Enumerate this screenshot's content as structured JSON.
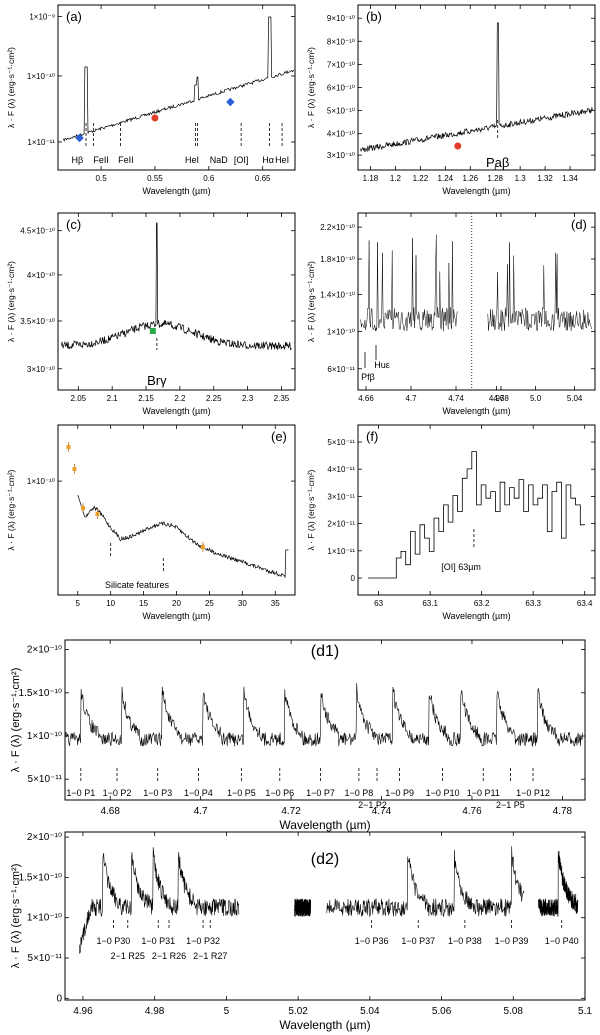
{
  "figure": {
    "panels": [
      {
        "id": "a",
        "panel_label": "(a)",
        "xlabel": "Wavelength (µm)",
        "ylabel": "λ · F (λ) (erg·s⁻¹·cm²)",
        "xticks": [
          "0.5",
          "0.55",
          "0.6",
          "0.65"
        ],
        "yticks": [
          "1×10⁻¹¹",
          "1×10⁻¹⁰",
          "1×10⁻⁹"
        ],
        "lines": [
          "Hβ",
          "FeII",
          "FeII",
          "HeI",
          "NaD",
          "[OI]",
          "Hα",
          "HeI"
        ]
      },
      {
        "id": "b",
        "panel_label": "(b)",
        "xlabel": "Wavelength (µm)",
        "ylabel": "λ · F (λ) (erg·s⁻¹·cm²)",
        "xticks": [
          "1.18",
          "1.2",
          "1.22",
          "1.24",
          "1.26",
          "1.28",
          "1.3",
          "1.32",
          "1.34"
        ],
        "yticks": [
          "3×10⁻¹⁰",
          "4×10⁻¹⁰",
          "5×10⁻¹⁰",
          "6×10⁻¹⁰",
          "7×10⁻¹⁰",
          "8×10⁻¹⁰",
          "9×10⁻¹⁰"
        ],
        "lines": [
          "Paβ"
        ]
      },
      {
        "id": "c",
        "panel_label": "(c)",
        "xlabel": "Wavelength (µm)",
        "ylabel": "λ · F (λ) (erg·s⁻¹·cm²)",
        "xticks": [
          "2.05",
          "2.1",
          "2.15",
          "2.2",
          "2.25",
          "2.3",
          "2.35"
        ],
        "yticks": [
          "3×10⁻¹⁰",
          "3.5×10⁻¹⁰",
          "4×10⁻¹⁰",
          "4.5×10⁻¹⁰"
        ],
        "lines": [
          "Brγ"
        ]
      },
      {
        "id": "d",
        "panel_label": "(d)",
        "xlabel": "Wavelength (µm)",
        "ylabel": "λ · F (λ) (erg·s⁻¹·cm²)",
        "xticks": [
          "4.66",
          "4.7",
          "4.74",
          "4.78",
          "4.96",
          "5.0",
          "5.04",
          "5.08"
        ],
        "yticks": [
          "6×10⁻¹¹",
          "1×10⁻¹⁰",
          "1.4×10⁻¹⁰",
          "1.8×10⁻¹⁰",
          "2.2×10⁻¹⁰"
        ],
        "lines": [
          "Pfβ",
          "Huε"
        ]
      },
      {
        "id": "e",
        "panel_label": "(e)",
        "xlabel": "Wavelength (µm)",
        "ylabel": "λ · F (λ) (erg·s⁻¹·cm²)",
        "xticks": [
          "5",
          "10",
          "15",
          "20",
          "25",
          "30",
          "35"
        ],
        "yticks": [
          "1×10⁻¹⁰"
        ],
        "annotation": "Silicate features"
      },
      {
        "id": "f",
        "panel_label": "(f)",
        "xlabel": "Wavelength (µm)",
        "ylabel": "λ · F (λ) (erg·s⁻¹·cm²)",
        "xticks": [
          "63",
          "63.1",
          "63.2",
          "63.3",
          "63.4"
        ],
        "yticks": [
          "0",
          "1×10⁻¹¹",
          "2×10⁻¹¹",
          "3×10⁻¹¹",
          "4×10⁻¹¹",
          "5×10⁻¹¹"
        ],
        "lines": [
          "[OI] 63µm"
        ]
      },
      {
        "id": "d1",
        "panel_label": "(d1)",
        "xlabel": "Wavelength (µm)",
        "ylabel": "λ · F (λ) (erg·s⁻¹·cm²)",
        "xticks": [
          "4.68",
          "4.7",
          "4.72",
          "4.74",
          "4.76",
          "4.78"
        ],
        "yticks": [
          "5×10⁻¹¹",
          "1×10⁻¹⁰",
          "1.5×10⁻¹⁰",
          "2×10⁻¹⁰"
        ],
        "lines": [
          "1−0 P1",
          "1−0 P2",
          "1−0 P3",
          "1−0 P4",
          "1−0 P5",
          "1−0 P6",
          "1−0 P7",
          "1−0 P8",
          "2−1 P2",
          "1−0 P9",
          "1−0 P10",
          "1−0 P11",
          "2−1 P5",
          "1−0 P12"
        ]
      },
      {
        "id": "d2",
        "panel_label": "(d2)",
        "xlabel": "Wavelength (µm)",
        "ylabel": "λ · F (λ) (erg·s⁻¹·cm²)",
        "xticks": [
          "4.96",
          "4.98",
          "5",
          "5.02",
          "5.04",
          "5.06",
          "5.08",
          "5.1"
        ],
        "yticks": [
          "0",
          "5×10⁻¹¹",
          "1×10⁻¹⁰",
          "1.5×10⁻¹⁰",
          "2×10⁻¹⁰"
        ],
        "lines": [
          "1−0 P30",
          "2−1 R25",
          "1−0 P31",
          "2−1 R26",
          "1−0 P32",
          "2−1 R27",
          "1−0 P36",
          "1−0 P37",
          "1−0 P38",
          "1−0 P39",
          "1−0 P40"
        ]
      }
    ]
  },
  "chart_data": [
    {
      "type": "line",
      "panel": "(a)",
      "xlabel": "Wavelength (µm)",
      "ylabel": "λ · F (λ) (erg·s⁻¹·cm²)",
      "xlim": [
        0.46,
        0.68
      ],
      "ylim": [
        1e-11,
        2e-09
      ],
      "yscale": "log",
      "series": [
        {
          "x": [
            0.47,
            0.5,
            0.55,
            0.6,
            0.64,
            0.655,
            0.656,
            0.66,
            0.68
          ],
          "y": [
            1.3e-11,
            2.2e-11,
            3.5e-11,
            6e-11,
            8e-11,
            9e-11,
            9e-10,
            1e-10,
            1.1e-10
          ]
        }
      ],
      "photometry": [
        {
          "x": 0.48,
          "y": 1.5e-11,
          "color": "#2b5fd9"
        },
        {
          "x": 0.55,
          "y": 3.6e-11,
          "color": "#e0402a"
        },
        {
          "x": 0.62,
          "y": 6.4e-11,
          "color": "#2b5fd9"
        }
      ],
      "line_ids": [
        "Hβ",
        "FeII",
        "FeII",
        "HeI",
        "NaD",
        "[OI]",
        "Hα",
        "HeI"
      ]
    },
    {
      "type": "line",
      "panel": "(b)",
      "xlabel": "Wavelength (µm)",
      "ylabel": "λ · F (λ) (erg·s⁻¹·cm²)",
      "xlim": [
        1.17,
        1.36
      ],
      "ylim": [
        2.7e-10,
        9.2e-10
      ],
      "series": [
        {
          "x": [
            1.17,
            1.2,
            1.24,
            1.28,
            1.282,
            1.3,
            1.35
          ],
          "y": [
            2.9e-10,
            3e-10,
            3.2e-10,
            3.6e-10,
            8.9e-10,
            3.8e-10,
            4.1e-10
          ]
        }
      ],
      "photometry": [
        {
          "x": 1.25,
          "y": 3.3e-10,
          "color": "#e0402a"
        }
      ],
      "line_ids": [
        "Paβ"
      ]
    },
    {
      "type": "line",
      "panel": "(c)",
      "xlabel": "Wavelength (µm)",
      "ylabel": "λ · F (λ) (erg·s⁻¹·cm²)",
      "xlim": [
        2.02,
        2.37
      ],
      "ylim": [
        2.9e-10,
        4.9e-10
      ],
      "series": [
        {
          "x": [
            2.02,
            2.1,
            2.16,
            2.166,
            2.2,
            2.3,
            2.36
          ],
          "y": [
            3.1e-10,
            3.2e-10,
            3.4e-10,
            4.8e-10,
            3.35e-10,
            3.2e-10,
            3.05e-10
          ]
        }
      ],
      "photometry": [
        {
          "x": 2.16,
          "y": 3.4e-10,
          "color": "#2aa84a"
        }
      ],
      "line_ids": [
        "Brγ"
      ]
    },
    {
      "type": "line",
      "panel": "(d)",
      "xlabel": "Wavelength (µm)",
      "ylabel": "λ · F (λ) (erg·s⁻¹·cm²)",
      "ylim": [
        4e-11,
        2.4e-10
      ],
      "series": [
        {
          "name": "",
          "x": [
            4.65,
            4.7,
            4.75,
            4.78,
            4.95,
            5.0,
            5.05,
            5.09
          ],
          "y": [
            1.1e-10,
            1.2e-10,
            1.15e-10,
            1.1e-10,
            1.1e-10,
            1.1e-10,
            1.1e-10,
            1.1e-10
          ]
        }
      ],
      "line_ids": [
        "Pfβ",
        "Huε"
      ]
    },
    {
      "type": "line",
      "panel": "(e)",
      "xlabel": "Wavelength (µm)",
      "ylabel": "λ · F (λ) (erg·s⁻¹·cm²)",
      "xlim": [
        2,
        38
      ],
      "yscale": "log",
      "series": [
        {
          "x": [
            5,
            7,
            9,
            10,
            11,
            14,
            18,
            20,
            25,
            30,
            35
          ],
          "y": [
            1e-10,
            5e-11,
            6.5e-11,
            4.5e-11,
            3.5e-11,
            3.7e-11,
            4.4e-11,
            3.9e-11,
            3e-11,
            2.2e-11,
            1.7e-11
          ]
        }
      ],
      "photometry": [
        {
          "x": 3.6,
          "y": 2.2e-10
        },
        {
          "x": 4.5,
          "y": 1.6e-10
        },
        {
          "x": 5.8,
          "y": 8e-11
        },
        {
          "x": 8,
          "y": 7.2e-11
        },
        {
          "x": 24,
          "y": 3.4e-11
        }
      ],
      "annotation": "Silicate features"
    },
    {
      "type": "line",
      "panel": "(f)",
      "xlabel": "Wavelength (µm)",
      "ylabel": "λ · F (λ) (erg·s⁻¹·cm²)",
      "xlim": [
        62.96,
        63.42
      ],
      "ylim": [
        0,
        5.5e-11
      ],
      "series": [
        {
          "x": [
            62.98,
            63.03,
            63.08,
            63.12,
            63.16,
            63.18,
            63.2,
            63.25,
            63.3,
            63.35,
            63.4
          ],
          "y": [
            0,
            1e-11,
            2e-11,
            1.5e-11,
            5e-11,
            5.5e-11,
            4e-11,
            3.8e-11,
            3.5e-11,
            3.2e-11,
            6e-12
          ]
        }
      ],
      "line_ids": [
        "[OI] 63µm"
      ]
    },
    {
      "type": "line",
      "panel": "(d1)",
      "xlabel": "Wavelength (µm)",
      "ylabel": "λ · F (λ) (erg·s⁻¹·cm²)",
      "xlim": [
        4.67,
        4.785
      ],
      "ylim": [
        3.5e-11,
        2.4e-10
      ],
      "series": [
        {
          "x": [
            4.67,
            4.684,
            4.692,
            4.7,
            4.709,
            4.718,
            4.726,
            4.734,
            4.742,
            4.75,
            4.76,
            4.772
          ],
          "y": [
            1.1e-10,
            1.8e-10,
            1.75e-10,
            2e-10,
            1.65e-10,
            1.8e-10,
            2.2e-10,
            1.9e-10,
            2e-10,
            1.95e-10,
            1.9e-10,
            2e-10
          ]
        }
      ],
      "line_ids": [
        "1−0 P1",
        "1−0 P2",
        "1−0 P3",
        "1−0 P4",
        "1−0 P5",
        "1−0 P6",
        "1−0 P7",
        "1−0 P8",
        "2−1 P2",
        "1−0 P9",
        "1−0 P10",
        "1−0 P11",
        "2−1 P5",
        "1−0 P12"
      ]
    },
    {
      "type": "line",
      "panel": "(d2)",
      "xlabel": "Wavelength (µm)",
      "ylabel": "λ · F (λ) (erg·s⁻¹·cm²)",
      "xlim": [
        4.955,
        5.1
      ],
      "ylim": [
        0,
        2e-10
      ],
      "series": [
        {
          "x": [
            4.96,
            4.97,
            4.98,
            4.99,
            5.0,
            5.02,
            5.04,
            5.05,
            5.07,
            5.08,
            5.09,
            5.097
          ],
          "y": [
            1e-10,
            1.6e-10,
            1.9e-10,
            1.65e-10,
            1.1e-10,
            1e-10,
            1.1e-10,
            1.35e-10,
            1.5e-10,
            1.75e-10,
            1.4e-10,
            6e-11
          ]
        }
      ],
      "line_ids": [
        "1−0 P30",
        "2−1 R25",
        "1−0 P31",
        "2−1 R26",
        "1−0 P32",
        "2−1 R27",
        "1−0 P36",
        "1−0 P37",
        "1−0 P38",
        "1−0 P39",
        "1−0 P40"
      ]
    }
  ]
}
